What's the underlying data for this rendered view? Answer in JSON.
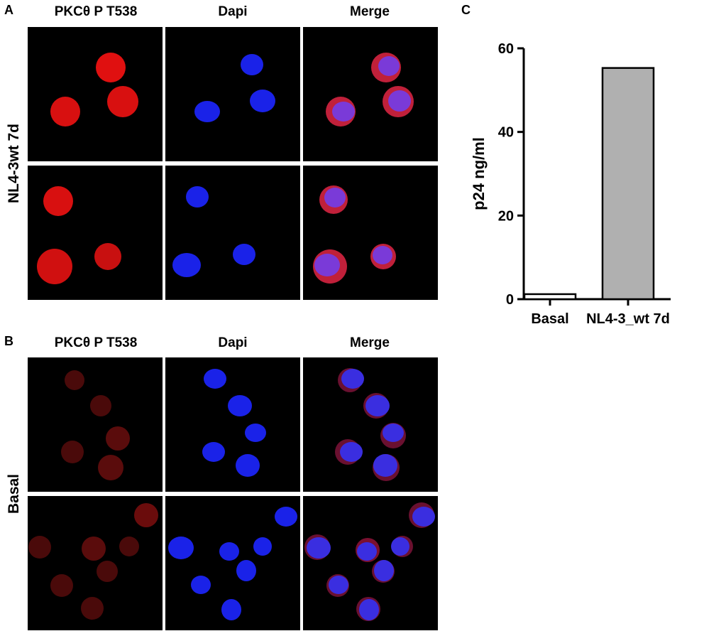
{
  "panels": {
    "A": {
      "letter": "A",
      "row_label": "NL4-3wt 7d",
      "columns": [
        "PKCθ P T538",
        "Dapi",
        "Merge"
      ]
    },
    "B": {
      "letter": "B",
      "row_label": "Basal",
      "columns": [
        "PKCθ P T538",
        "Dapi",
        "Merge"
      ]
    },
    "C": {
      "letter": "C"
    }
  },
  "colors": {
    "pkc_strong": "#e01010",
    "pkc_weak": "#8a1010",
    "dapi": "#1a22e8",
    "merge": "#7a3ad8",
    "bar_fill_basal": "#ffffff",
    "bar_fill_nl43": "#b0b0b0"
  },
  "chart_data": {
    "type": "bar",
    "categories": [
      "Basal",
      "NL4-3_wt 7d"
    ],
    "values": [
      1.2,
      55.3
    ],
    "ylabel": "p24 ng/ml",
    "ylim": [
      0,
      60
    ],
    "yticks": [
      0,
      20,
      40,
      60
    ],
    "grid": false
  }
}
